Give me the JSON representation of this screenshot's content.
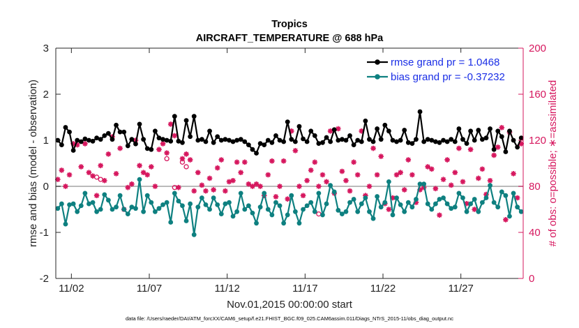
{
  "chart_data": {
    "type": "line",
    "title": "Tropics",
    "subtitle": "AIRCRAFT_TEMPERATURE @ 688 hPa",
    "xlabel": "Nov.01,2015 00:00:00 start",
    "ylabel": "rmse and bias (model - observation)",
    "y2label": "# of obs: o=possible; ∗=assimilated",
    "footnote": "data file: /Users/raeder/DAI/ATM_forcXX/CAM6_setup/f.e21.FHIST_BGC.f09_025.CAM6assim.011/Diags_NTrS_2015-11/obs_diag_output.nc",
    "xlim": [
      0.5,
      30.5
    ],
    "ylim": [
      -2,
      3
    ],
    "y2lim": [
      0,
      200
    ],
    "xticks": [
      1.5,
      6.5,
      11.5,
      16.5,
      21.5,
      26.5
    ],
    "xtick_labels": [
      "11/02",
      "11/07",
      "11/12",
      "11/17",
      "11/22",
      "11/27"
    ],
    "yticks": [
      -2,
      -1,
      0,
      1,
      2,
      3
    ],
    "ytick_labels": [
      "-2",
      "-1",
      "0",
      "1",
      "2",
      "3"
    ],
    "y2ticks": [
      0,
      40,
      80,
      120,
      160,
      200
    ],
    "y2tick_labels": [
      "0",
      "40",
      "80",
      "120",
      "160",
      "200"
    ],
    "legend_position": "top-right",
    "colors": {
      "rmse": "#000000",
      "bias": "#0e8080",
      "obs": "#d6175e",
      "zero_line": "#bbbbbb"
    },
    "x": [
      0.625,
      0.875,
      1.125,
      1.375,
      1.625,
      1.875,
      2.125,
      2.375,
      2.625,
      2.875,
      3.125,
      3.375,
      3.625,
      3.875,
      4.125,
      4.375,
      4.625,
      4.875,
      5.125,
      5.375,
      5.625,
      5.875,
      6.125,
      6.375,
      6.625,
      6.875,
      7.125,
      7.375,
      7.625,
      7.875,
      8.125,
      8.375,
      8.625,
      8.875,
      9.125,
      9.375,
      9.625,
      9.875,
      10.125,
      10.375,
      10.625,
      10.875,
      11.125,
      11.375,
      11.625,
      11.875,
      12.125,
      12.375,
      12.625,
      12.875,
      13.125,
      13.375,
      13.625,
      13.875,
      14.125,
      14.375,
      14.625,
      14.875,
      15.125,
      15.375,
      15.625,
      15.875,
      16.125,
      16.375,
      16.625,
      16.875,
      17.125,
      17.375,
      17.625,
      17.875,
      18.125,
      18.375,
      18.625,
      18.875,
      19.125,
      19.375,
      19.625,
      19.875,
      20.125,
      20.375,
      20.625,
      20.875,
      21.125,
      21.375,
      21.625,
      21.875,
      22.125,
      22.375,
      22.625,
      22.875,
      23.125,
      23.375,
      23.625,
      23.875,
      24.125,
      24.375,
      24.625,
      24.875,
      25.125,
      25.375,
      25.625,
      25.875,
      26.125,
      26.375,
      26.625,
      26.875,
      27.125,
      27.375,
      27.625,
      27.875,
      28.125,
      28.375,
      28.625,
      28.875,
      29.125,
      29.375,
      29.625,
      29.875,
      30.125,
      30.375
    ],
    "series": [
      {
        "name": "rmse grand pr = 1.0468",
        "values": [
          1.0,
          0.9,
          1.28,
          1.18,
          0.78,
          1.0,
          0.97,
          1.03,
          1.0,
          0.98,
          1.05,
          1.02,
          1.1,
          1.15,
          1.02,
          1.33,
          1.18,
          1.18,
          0.88,
          1.02,
          0.92,
          1.35,
          1.02,
          0.82,
          0.8,
          1.2,
          1.05,
          1.02,
          1.0,
          0.98,
          1.52,
          0.98,
          0.95,
          1.43,
          1.08,
          1.52,
          1.0,
          1.02,
          0.97,
          1.2,
          0.95,
          1.08,
          1.0,
          1.02,
          1.0,
          0.97,
          1.0,
          1.02,
          0.97,
          0.9,
          0.8,
          0.72,
          0.93,
          0.9,
          1.0,
          0.95,
          1.1,
          1.0,
          0.97,
          1.4,
          1.02,
          0.97,
          1.3,
          1.03,
          0.97,
          1.2,
          1.1,
          0.93,
          0.95,
          1.06,
          0.97,
          1.23,
          1.0,
          1.02,
          1.0,
          1.1,
          0.9,
          1.0,
          0.97,
          1.42,
          1.02,
          0.97,
          1.25,
          1.02,
          1.33,
          1.2,
          1.0,
          0.97,
          1.0,
          1.22,
          0.95,
          0.93,
          1.02,
          1.62,
          0.97,
          1.02,
          1.0,
          0.97,
          0.95,
          1.0,
          0.97,
          1.02,
          0.97,
          1.25,
          1.02,
          0.93,
          1.2,
          1.0,
          1.22,
          1.02,
          1.05,
          1.25,
          0.8,
          1.2,
          1.08,
          0.75,
          1.2,
          1.0,
          0.85,
          1.05
        ]
      },
      {
        "name": "bias grand pr = -0.37232",
        "values": [
          -0.48,
          -0.38,
          -0.82,
          -0.4,
          -0.38,
          -0.55,
          -0.42,
          -0.15,
          -0.38,
          -0.35,
          -0.55,
          -0.5,
          -0.18,
          -0.3,
          -0.5,
          -0.45,
          -0.2,
          -0.5,
          -0.6,
          -0.45,
          -0.48,
          0.15,
          -0.55,
          -0.2,
          -0.35,
          -0.55,
          -0.48,
          -0.4,
          -0.35,
          -0.78,
          -0.15,
          -0.32,
          -0.42,
          -0.75,
          -0.38,
          -1.05,
          -0.45,
          -0.25,
          -0.4,
          -0.5,
          -0.25,
          -0.4,
          -0.6,
          -0.38,
          -0.35,
          -0.65,
          -0.55,
          -0.15,
          -0.5,
          -0.42,
          -0.58,
          -0.8,
          -0.45,
          -0.15,
          -0.5,
          -0.62,
          -0.35,
          -0.42,
          -0.8,
          -0.62,
          -0.2,
          -0.55,
          -0.8,
          -0.5,
          -0.42,
          -0.35,
          -0.55,
          -0.15,
          -0.62,
          -0.38,
          0.02,
          -0.12,
          -0.52,
          -0.6,
          -0.55,
          -0.35,
          -0.28,
          -0.55,
          -0.38,
          -0.25,
          -0.55,
          -0.7,
          -0.22,
          -0.45,
          -0.35,
          0.1,
          -0.62,
          -0.25,
          -0.4,
          -0.55,
          -0.35,
          -0.45,
          -0.28,
          0.05,
          0.05,
          -0.38,
          -0.5,
          -0.38,
          -0.28,
          -0.25,
          -0.38,
          -0.48,
          -0.45,
          -0.15,
          -0.25,
          -0.55,
          -0.38,
          -0.28,
          -0.55,
          -0.35,
          -0.25,
          0.02,
          -0.35,
          -0.45,
          -0.12,
          -0.2,
          -0.65,
          -0.15,
          -0.45,
          -0.55
        ]
      }
    ],
    "obs_assimilated": [
      86,
      94,
      80,
      90,
      117,
      116,
      97,
      117,
      92,
      89,
      72,
      98,
      85,
      108,
      123,
      91,
      113,
      60,
      79,
      82,
      120,
      98,
      92,
      90,
      97,
      80,
      112,
      117,
      109,
      134,
      124,
      79,
      104,
      108,
      103,
      76,
      92,
      81,
      76,
      87,
      77,
      96,
      103,
      76,
      84,
      85,
      101,
      92,
      101,
      82,
      80,
      82,
      80,
      72,
      90,
      102,
      71,
      80,
      102,
      69,
      128,
      111,
      80,
      72,
      85,
      94,
      101,
      80,
      90,
      84,
      128,
      74,
      130,
      93,
      85,
      76,
      101,
      90,
      128,
      72,
      80,
      113,
      90,
      106,
      65,
      60,
      70,
      90,
      92,
      77,
      103,
      90,
      66,
      77,
      79,
      97,
      95,
      78,
      55,
      86,
      103,
      81,
      92,
      113,
      84,
      65,
      112,
      60,
      87,
      95,
      73,
      85,
      107,
      114,
      131,
      51,
      127,
      91,
      70,
      117
    ],
    "obs_possible": [
      [
        3.125,
        88
      ],
      [
        3.375,
        86
      ],
      [
        7.625,
        104
      ],
      [
        8.125,
        79
      ],
      [
        8.875,
        97
      ],
      [
        8.625,
        101
      ],
      [
        17.375,
        56
      ]
    ]
  }
}
